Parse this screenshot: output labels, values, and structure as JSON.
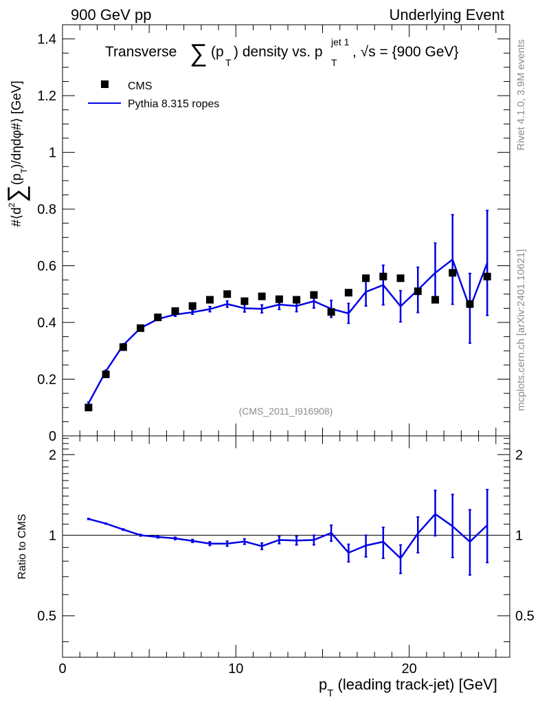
{
  "header": {
    "left": "900 GeV pp",
    "right": "Underlying Event"
  },
  "side_text": {
    "rivet": "Rivet 4.1.0,  3.9M events",
    "mcplots": "mcplots.cern.ch [arXiv:2401.10621]"
  },
  "colors": {
    "data": "#000000",
    "mc": "#0000e6",
    "frame": "#000000",
    "watermark": "#8c8c8c"
  },
  "chart_data": [
    {
      "type": "scatter",
      "panel": "main",
      "title": "Transverse ∑(pT) density vs. pT jet 1, √s = {900 GeV}",
      "title_parts": {
        "prefix": "Transverse",
        "sum": "∑",
        "pt_open": "(p",
        "pt_sub": "T",
        "middle": ") density vs. p",
        "jet_sup": "jet 1",
        "jet_sub": "T",
        "suffix": ", √s = {900 GeV}"
      },
      "ylabel": "#⟨d² ∑(pT)/dηdφ#⟩ [GeV]",
      "ylabel_parts": {
        "a": "#⟨d",
        "sup": "2",
        "sum": "∑",
        "b": "(p",
        "sub": "T",
        "c": ")/dηdφ#⟩ [GeV]"
      },
      "xlim": [
        0,
        25.8
      ],
      "ylim": [
        0,
        1.45
      ],
      "yticks": [
        0,
        0.2,
        0.4,
        0.6,
        0.8,
        1,
        1.2,
        1.4
      ],
      "ytick_labels": [
        "0",
        "0.2",
        "0.4",
        "0.6",
        "0.8",
        "1",
        "1.2",
        "1.4"
      ],
      "watermark": "(CMS_2011_I916908)",
      "legend_position": "top-left",
      "x": [
        1.5,
        2.5,
        3.5,
        4.5,
        5.5,
        6.5,
        7.5,
        8.5,
        9.5,
        10.5,
        11.5,
        12.5,
        13.5,
        14.5,
        15.5,
        16.5,
        17.5,
        18.5,
        19.5,
        20.5,
        21.5,
        22.5,
        23.5,
        24.5
      ],
      "series": [
        {
          "name": "CMS",
          "style": "markers",
          "values": [
            0.1,
            0.217,
            0.313,
            0.38,
            0.418,
            0.44,
            0.458,
            0.48,
            0.5,
            0.475,
            0.492,
            0.482,
            0.48,
            0.497,
            0.437,
            0.505,
            0.556,
            0.562,
            0.556,
            0.51,
            0.48,
            0.575,
            0.465,
            0.562
          ]
        },
        {
          "name": "Pythia 8.315 ropes",
          "style": "line",
          "values": [
            0.115,
            0.228,
            0.32,
            0.38,
            0.412,
            0.428,
            0.436,
            0.447,
            0.465,
            0.45,
            0.448,
            0.463,
            0.458,
            0.475,
            0.448,
            0.432,
            0.508,
            0.532,
            0.457,
            0.515,
            0.575,
            0.622,
            0.45,
            0.61
          ],
          "errors": [
            0.004,
            0.004,
            0.005,
            0.005,
            0.005,
            0.006,
            0.007,
            0.009,
            0.011,
            0.013,
            0.014,
            0.017,
            0.02,
            0.024,
            0.03,
            0.035,
            0.05,
            0.07,
            0.055,
            0.08,
            0.105,
            0.158,
            0.123,
            0.185
          ]
        }
      ]
    },
    {
      "type": "line",
      "panel": "ratio",
      "ylabel": "Ratio to CMS",
      "xlabel": "pT (leading track-jet) [GeV]",
      "xlabel_parts": {
        "p": "p",
        "sub": "T",
        "rest": " (leading track-jet) [GeV]"
      },
      "xlim": [
        0,
        25.8
      ],
      "ylim": [
        0.35,
        2.35
      ],
      "xticks": [
        0,
        10,
        20
      ],
      "xtick_labels": [
        "0",
        "10",
        "20"
      ],
      "yticks": [
        0.5,
        1,
        2
      ],
      "ytick_labels": [
        "0.5",
        "1",
        "2"
      ],
      "reference": 1,
      "x": [
        1.5,
        2.5,
        3.5,
        4.5,
        5.5,
        6.5,
        7.5,
        8.5,
        9.5,
        10.5,
        11.5,
        12.5,
        13.5,
        14.5,
        15.5,
        16.5,
        17.5,
        18.5,
        19.5,
        20.5,
        21.5,
        22.5,
        23.5,
        24.5
      ],
      "series": [
        {
          "name": "Pythia 8.315 ropes / CMS",
          "values": [
            1.15,
            1.105,
            1.05,
            1.0,
            0.985,
            0.973,
            0.952,
            0.93,
            0.93,
            0.947,
            0.91,
            0.96,
            0.955,
            0.96,
            1.02,
            0.86,
            0.915,
            0.945,
            0.82,
            1.015,
            1.2,
            1.08,
            0.945,
            1.09
          ],
          "err_low": [
            0.005,
            0.005,
            0.006,
            0.007,
            0.008,
            0.01,
            0.012,
            0.015,
            0.02,
            0.022,
            0.025,
            0.03,
            0.035,
            0.04,
            0.07,
            0.065,
            0.085,
            0.125,
            0.1,
            0.155,
            0.205,
            0.255,
            0.235,
            0.3
          ],
          "err_high": [
            0.005,
            0.005,
            0.006,
            0.007,
            0.008,
            0.01,
            0.012,
            0.015,
            0.02,
            0.022,
            0.025,
            0.03,
            0.035,
            0.04,
            0.07,
            0.065,
            0.085,
            0.125,
            0.1,
            0.155,
            0.27,
            0.34,
            0.3,
            0.39
          ]
        }
      ]
    }
  ]
}
